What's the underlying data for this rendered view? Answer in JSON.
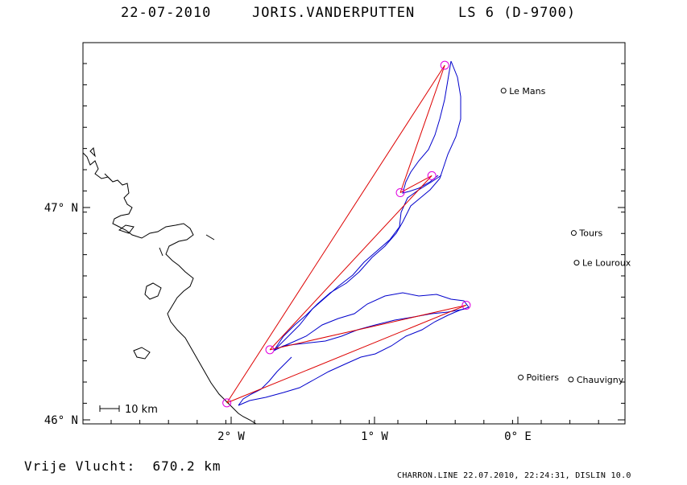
{
  "header": {
    "date": "22-07-2010",
    "pilot": "JORIS.VANDERPUTTEN",
    "glider": "LS 6 (D-9700)"
  },
  "map": {
    "lat_labels": [
      {
        "text": "47° N",
        "lat": 47.0
      },
      {
        "text": "46° N",
        "lat": 46.0
      }
    ],
    "lon_labels": [
      {
        "text": "2° W",
        "lon": -2.0
      },
      {
        "text": "1° W",
        "lon": -1.0
      },
      {
        "text": "0° E",
        "lon": 0.0
      }
    ],
    "scale_label": "10 km",
    "cities": [
      {
        "name": "Le Mans",
        "lon": -0.1,
        "lat": 47.55
      },
      {
        "name": "Tours",
        "lon": 0.39,
        "lat": 46.88
      },
      {
        "name": "Le Louroux",
        "lon": 0.41,
        "lat": 46.74
      },
      {
        "name": "Poitiers",
        "lon": 0.02,
        "lat": 46.2
      },
      {
        "name": "Chauvigny",
        "lon": 0.37,
        "lat": 46.19
      }
    ],
    "turnpoints": [
      {
        "lon": -2.03,
        "lat": 46.08
      },
      {
        "lon": -0.51,
        "lat": 47.67
      },
      {
        "lon": -0.82,
        "lat": 47.07
      },
      {
        "lon": -0.6,
        "lat": 47.15
      },
      {
        "lon": -1.73,
        "lat": 46.33
      },
      {
        "lon": -0.36,
        "lat": 46.54
      }
    ],
    "colors": {
      "coast": "#000000",
      "track": "#0000cc",
      "task_lines": "#dd0000",
      "turnpoint_circles": "#e000e0"
    }
  },
  "footer": {
    "label": "Vrije Vlucht:",
    "distance": "670.2 km",
    "credit": "CHARRON.LINE 22.07.2010, 22:24:31, DISLIN 10.0"
  }
}
